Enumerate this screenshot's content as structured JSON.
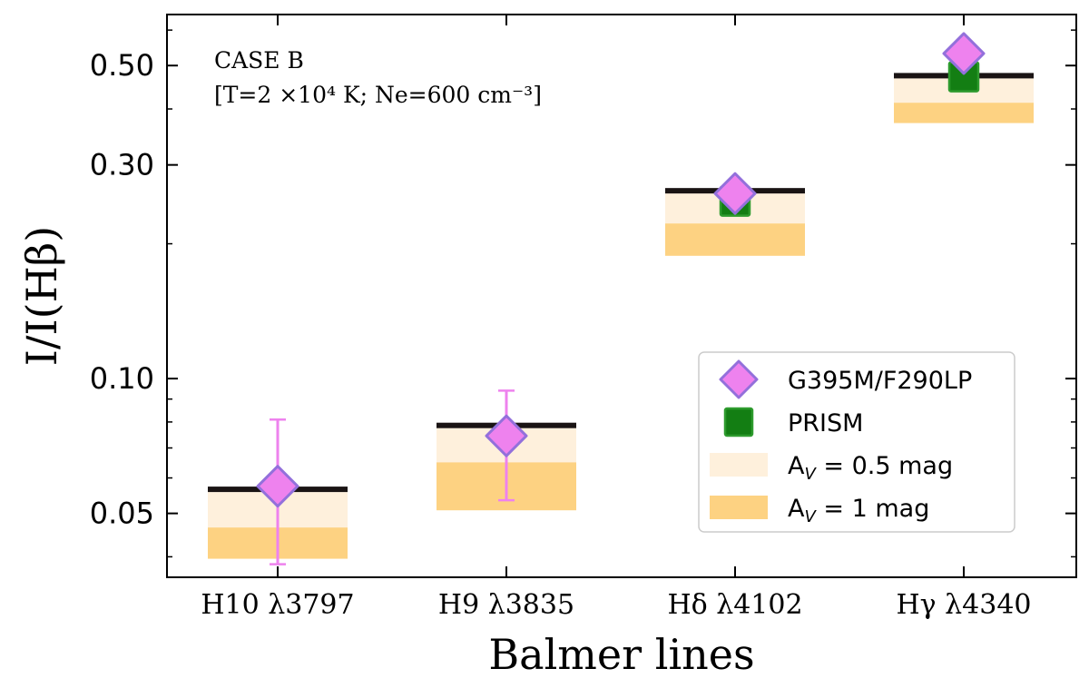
{
  "chart_data": {
    "type": "scatter",
    "title": "",
    "xlabel": "Balmer lines",
    "ylabel": "I/I(Hβ)",
    "y_scale": "log",
    "ylim": [
      0.036,
      0.65
    ],
    "yticks": [
      {
        "value": 0.05,
        "label": "0.05"
      },
      {
        "value": 0.1,
        "label": "0.10"
      },
      {
        "value": 0.3,
        "label": "0.30"
      },
      {
        "value": 0.5,
        "label": "0.50"
      }
    ],
    "categories": [
      "H10 λ3797",
      "H9 λ3835",
      "Hδ λ4102",
      "Hγ λ4340"
    ],
    "annotation": {
      "line1": "CASE B",
      "line2": "[T=2 ×10⁴ K; Ne=600 cm⁻³]"
    },
    "case_b_values": [
      0.0558,
      0.0775,
      0.259,
      0.468
    ],
    "bands": [
      {
        "name": "A",
        "sub": "V",
        "rest": " = 0.5 mag",
        "color": "#fef0dc",
        "low": [
          0.0465,
          0.065,
          0.222,
          0.413
        ],
        "high": [
          0.0558,
          0.0775,
          0.259,
          0.468
        ]
      },
      {
        "name": "A",
        "sub": "V",
        "rest": " = 1 mag",
        "color": "#fdd282",
        "low": [
          0.0396,
          0.0508,
          0.188,
          0.372
        ],
        "high": [
          0.0465,
          0.065,
          0.222,
          0.413
        ]
      }
    ],
    "series": [
      {
        "name": "G395M/F290LP",
        "marker": "diamond",
        "color": "#ee82ee",
        "edge": "#9370db",
        "values": [
          0.0575,
          0.0745,
          0.259,
          0.532
        ],
        "err_low": [
          0.0385,
          0.0535,
          null,
          null
        ],
        "err_high": [
          0.081,
          0.094,
          null,
          null
        ]
      },
      {
        "name": "PRISM",
        "marker": "square",
        "color": "#137e13",
        "edge": "#2e9b2e",
        "values": [
          null,
          null,
          0.249,
          0.472
        ]
      }
    ],
    "legend_position": "lower right",
    "grid": false
  }
}
